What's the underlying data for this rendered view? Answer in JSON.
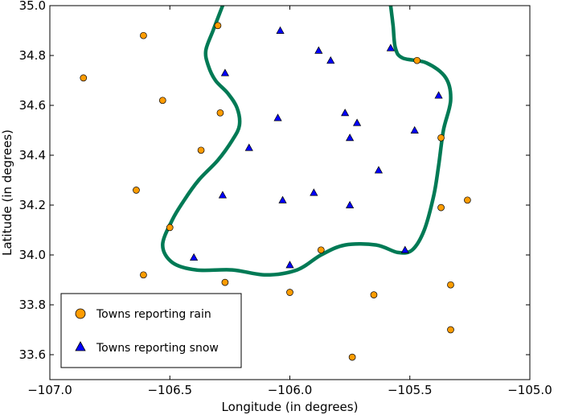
{
  "chart_data": {
    "type": "scatter",
    "title": "",
    "xlabel": "Longitude (in degrees)",
    "ylabel": "Latitude (in degrees)",
    "xlim": [
      -107.0,
      -105.0
    ],
    "ylim": [
      33.5,
      35.0
    ],
    "xticks": [
      -107.0,
      -106.5,
      -106.0,
      -105.5,
      -105.0
    ],
    "xtick_labels": [
      "−107.0",
      "−106.5",
      "−106.0",
      "−105.5",
      "−105.0"
    ],
    "yticks": [
      33.6,
      33.8,
      34.0,
      34.2,
      34.4,
      34.6,
      34.8,
      35.0
    ],
    "ytick_labels": [
      "33.6",
      "33.8",
      "34.0",
      "34.2",
      "34.4",
      "34.6",
      "34.8",
      "35.0"
    ],
    "grid": false,
    "legend_position": "bottom-left",
    "series": [
      {
        "name": "Towns reporting rain",
        "marker": "circle",
        "color": "#ff9c00",
        "points": [
          [
            -106.61,
            34.88
          ],
          [
            -106.3,
            34.92
          ],
          [
            -106.86,
            34.71
          ],
          [
            -106.53,
            34.62
          ],
          [
            -106.29,
            34.57
          ],
          [
            -106.37,
            34.42
          ],
          [
            -106.64,
            34.26
          ],
          [
            -106.5,
            34.11
          ],
          [
            -106.61,
            33.92
          ],
          [
            -106.27,
            33.89
          ],
          [
            -106.0,
            33.85
          ],
          [
            -105.87,
            34.02
          ],
          [
            -105.65,
            33.84
          ],
          [
            -105.74,
            33.59
          ],
          [
            -105.33,
            33.88
          ],
          [
            -105.33,
            33.7
          ],
          [
            -105.26,
            34.22
          ],
          [
            -105.37,
            34.19
          ],
          [
            -105.37,
            34.47
          ],
          [
            -105.47,
            34.78
          ]
        ]
      },
      {
        "name": "Towns reporting snow",
        "marker": "triangle",
        "color": "#0000ff",
        "points": [
          [
            -106.04,
            34.9
          ],
          [
            -105.88,
            34.82
          ],
          [
            -105.83,
            34.78
          ],
          [
            -105.58,
            34.83
          ],
          [
            -106.27,
            34.73
          ],
          [
            -105.77,
            34.57
          ],
          [
            -105.72,
            34.53
          ],
          [
            -106.05,
            34.55
          ],
          [
            -105.75,
            34.47
          ],
          [
            -105.48,
            34.5
          ],
          [
            -105.38,
            34.64
          ],
          [
            -106.17,
            34.43
          ],
          [
            -105.63,
            34.34
          ],
          [
            -106.28,
            34.24
          ],
          [
            -105.9,
            34.25
          ],
          [
            -106.03,
            34.22
          ],
          [
            -105.75,
            34.2
          ],
          [
            -106.4,
            33.99
          ],
          [
            -106.0,
            33.96
          ],
          [
            -105.52,
            34.02
          ]
        ]
      }
    ],
    "boundary": {
      "name": "snow region boundary",
      "color": "#007a55",
      "points": [
        [
          -106.28,
          35.0
        ],
        [
          -106.32,
          34.9
        ],
        [
          -106.35,
          34.82
        ],
        [
          -106.34,
          34.76
        ],
        [
          -106.31,
          34.7
        ],
        [
          -106.26,
          34.65
        ],
        [
          -106.22,
          34.59
        ],
        [
          -106.21,
          34.52
        ],
        [
          -106.24,
          34.46
        ],
        [
          -106.3,
          34.38
        ],
        [
          -106.38,
          34.3
        ],
        [
          -106.44,
          34.22
        ],
        [
          -106.49,
          34.14
        ],
        [
          -106.53,
          34.04
        ],
        [
          -106.49,
          33.97
        ],
        [
          -106.39,
          33.94
        ],
        [
          -106.24,
          33.94
        ],
        [
          -106.1,
          33.92
        ],
        [
          -105.97,
          33.94
        ],
        [
          -105.87,
          34.0
        ],
        [
          -105.77,
          34.04
        ],
        [
          -105.64,
          34.04
        ],
        [
          -105.55,
          34.01
        ],
        [
          -105.49,
          34.02
        ],
        [
          -105.44,
          34.1
        ],
        [
          -105.4,
          34.24
        ],
        [
          -105.38,
          34.36
        ],
        [
          -105.36,
          34.5
        ],
        [
          -105.33,
          34.62
        ],
        [
          -105.35,
          34.71
        ],
        [
          -105.43,
          34.77
        ],
        [
          -105.53,
          34.79
        ],
        [
          -105.56,
          34.83
        ],
        [
          -105.57,
          34.92
        ],
        [
          -105.58,
          35.0
        ]
      ]
    }
  }
}
